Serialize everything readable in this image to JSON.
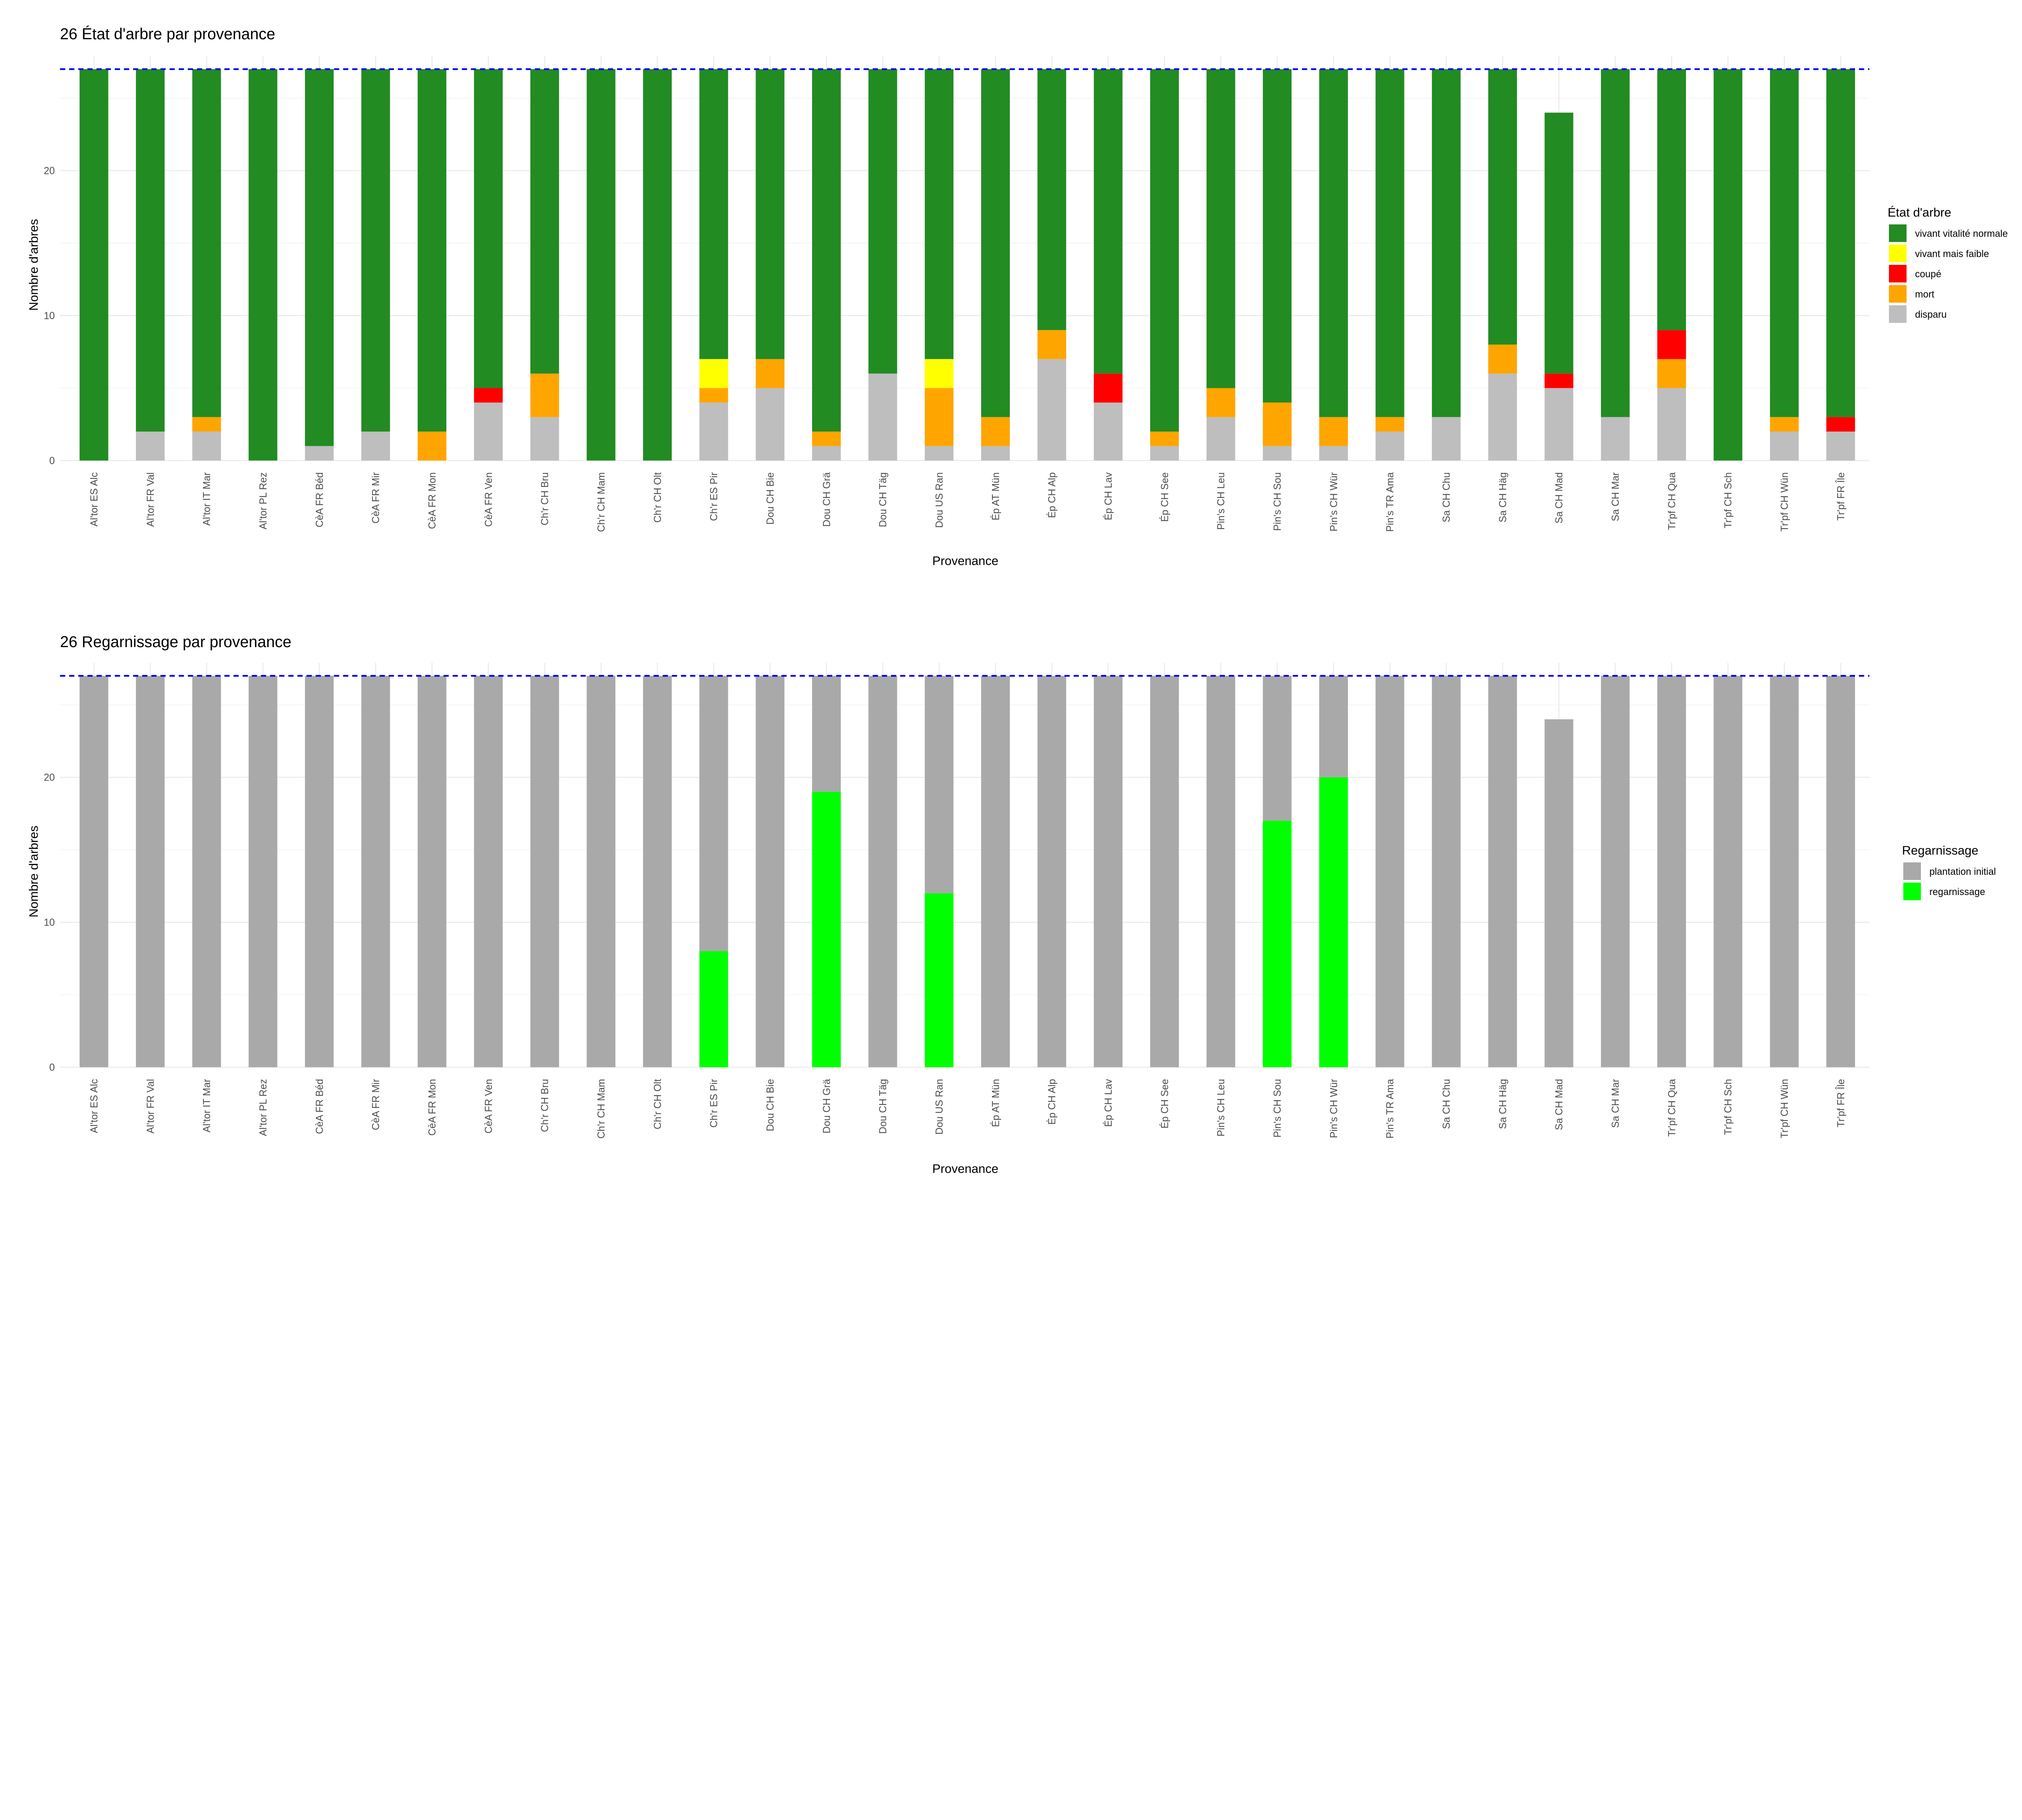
{
  "chart_data": [
    {
      "type": "bar",
      "stacked": true,
      "title": "26 État d'arbre par provenance",
      "xlabel": "Provenance",
      "ylabel": "Nombre d'arbres",
      "ylim": [
        0,
        27
      ],
      "yticks": [
        0,
        10,
        20
      ],
      "grid": true,
      "reference_line": {
        "value": 27,
        "style": "dashed",
        "color": "#0000FF"
      },
      "legend": {
        "title": "État d'arbre",
        "position": "right"
      },
      "categories": [
        "Al'tor ES Alc",
        "Al'tor FR Val",
        "Al'tor IT Mar",
        "Al'tor PL Rez",
        "CèA FR Béd",
        "CèA FR Mir",
        "CèA FR Mon",
        "CèA FR Ven",
        "Ch'r CH Bru",
        "Ch'r CH Mam",
        "Ch'r CH Olt",
        "Ch'r ES Pir",
        "Dou CH Bie",
        "Dou CH Grä",
        "Dou CH Täg",
        "Dou US Ran",
        "Ép AT Mün",
        "Ép CH Alp",
        "Ép CH Lav",
        "Ép CH See",
        "Pin's CH Leu",
        "Pin's CH Sou",
        "Pin's CH Wür",
        "Pin's TR Ama",
        "Sa CH Chu",
        "Sa CH Häg",
        "Sa CH Mad",
        "Sa CH Mar",
        "Tr'pf CH Qua",
        "Tr'pf CH Sch",
        "Tr'pf CH Wün",
        "Tr'pf FR Île"
      ],
      "series": [
        {
          "name": "vivant vitalité normale",
          "color": "#228B22",
          "values": [
            27,
            25,
            24,
            27,
            26,
            25,
            25,
            22,
            21,
            27,
            27,
            20,
            20,
            25,
            21,
            20,
            24,
            18,
            21,
            25,
            22,
            23,
            24,
            24,
            24,
            19,
            18,
            24,
            18,
            27,
            24,
            24
          ]
        },
        {
          "name": "vivant mais faible",
          "color": "#FFFF00",
          "values": [
            0,
            0,
            0,
            0,
            0,
            0,
            0,
            0,
            0,
            0,
            0,
            2,
            0,
            0,
            0,
            2,
            0,
            0,
            0,
            0,
            0,
            0,
            0,
            0,
            0,
            0,
            0,
            0,
            0,
            0,
            0,
            0
          ]
        },
        {
          "name": "coupé",
          "color": "#FF0000",
          "values": [
            0,
            0,
            0,
            0,
            0,
            0,
            0,
            1,
            0,
            0,
            0,
            0,
            0,
            0,
            0,
            0,
            0,
            0,
            2,
            0,
            0,
            0,
            0,
            0,
            0,
            0,
            1,
            0,
            2,
            0,
            0,
            1
          ]
        },
        {
          "name": "mort",
          "color": "#FFA500",
          "values": [
            0,
            0,
            1,
            0,
            0,
            0,
            2,
            0,
            3,
            0,
            0,
            1,
            2,
            1,
            0,
            4,
            2,
            2,
            0,
            1,
            2,
            3,
            2,
            1,
            0,
            2,
            0,
            0,
            2,
            0,
            1,
            0
          ]
        },
        {
          "name": "disparu",
          "color": "#BEBEBE",
          "values": [
            0,
            2,
            2,
            0,
            1,
            2,
            0,
            4,
            3,
            0,
            0,
            4,
            5,
            1,
            6,
            1,
            1,
            7,
            4,
            1,
            3,
            1,
            1,
            2,
            3,
            6,
            5,
            3,
            5,
            0,
            2,
            2
          ]
        }
      ]
    },
    {
      "type": "bar",
      "stacked": true,
      "title": "26 Regarnissage par provenance",
      "xlabel": "Provenance",
      "ylabel": "Nombre d'arbres",
      "ylim": [
        0,
        27
      ],
      "yticks": [
        0,
        10,
        20
      ],
      "grid": true,
      "reference_line": {
        "value": 27,
        "style": "dashed",
        "color": "#0000FF"
      },
      "legend": {
        "title": "Regarnissage",
        "position": "right"
      },
      "categories": [
        "Al'tor ES Alc",
        "Al'tor FR Val",
        "Al'tor IT Mar",
        "Al'tor PL Rez",
        "CèA FR Béd",
        "CèA FR Mir",
        "CèA FR Mon",
        "CèA FR Ven",
        "Ch'r CH Bru",
        "Ch'r CH Mam",
        "Ch'r CH Olt",
        "Ch'r ES Pir",
        "Dou CH Bie",
        "Dou CH Grä",
        "Dou CH Täg",
        "Dou US Ran",
        "Ép AT Mün",
        "Ép CH Alp",
        "Ép CH Lav",
        "Ép CH See",
        "Pin's CH Leu",
        "Pin's CH Sou",
        "Pin's CH Wür",
        "Pin's TR Ama",
        "Sa CH Chu",
        "Sa CH Häg",
        "Sa CH Mad",
        "Sa CH Mar",
        "Tr'pf CH Qua",
        "Tr'pf CH Sch",
        "Tr'pf CH Wün",
        "Tr'pf FR Île"
      ],
      "series": [
        {
          "name": "plantation initial",
          "color": "#A9A9A9",
          "values": [
            27,
            27,
            27,
            27,
            27,
            27,
            27,
            27,
            27,
            27,
            27,
            19,
            27,
            8,
            27,
            15,
            27,
            27,
            27,
            27,
            27,
            10,
            7,
            27,
            27,
            27,
            24,
            27,
            27,
            27,
            27,
            27
          ]
        },
        {
          "name": "regarnissage",
          "color": "#00FF00",
          "values": [
            0,
            0,
            0,
            0,
            0,
            0,
            0,
            0,
            0,
            0,
            0,
            8,
            0,
            19,
            0,
            12,
            0,
            0,
            0,
            0,
            0,
            17,
            20,
            0,
            0,
            0,
            0,
            0,
            0,
            0,
            0,
            0
          ]
        }
      ]
    }
  ]
}
